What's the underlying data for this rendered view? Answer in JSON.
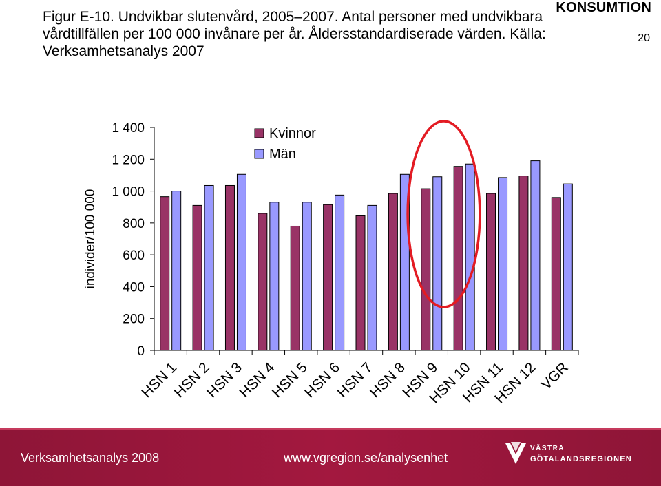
{
  "header": {
    "section_label": "KONSUMTION",
    "page_number": "20",
    "caption": "Figur E-10. Undvikbar slutenvård, 2005–2007. Antal personer med undvikbara vårdtillfällen per 100 000 invånare per år. Åldersstandardiserade värden. Källa: Verksamhetsanalys 2007"
  },
  "chart_data": {
    "type": "bar",
    "title": "",
    "xlabel": "",
    "ylabel": "individer/100 000",
    "ylim": [
      0,
      1400
    ],
    "yticks": [
      0,
      200,
      400,
      600,
      800,
      1000,
      1200,
      1400
    ],
    "ytick_labels": [
      "0",
      "200",
      "400",
      "600",
      "800",
      "1 000",
      "1 200",
      "1 400"
    ],
    "categories": [
      "HSN 1",
      "HSN 2",
      "HSN 3",
      "HSN 4",
      "HSN 5",
      "HSN 6",
      "HSN 7",
      "HSN 8",
      "HSN 9",
      "HSN 10",
      "HSN 11",
      "HSN 12",
      "VGR"
    ],
    "series": [
      {
        "name": "Kvinnor",
        "color": "#993366",
        "values": [
          965,
          910,
          1035,
          860,
          780,
          915,
          845,
          985,
          1015,
          1155,
          985,
          1095,
          960
        ]
      },
      {
        "name": "Män",
        "color": "#9999ff",
        "values": [
          1000,
          1035,
          1105,
          930,
          930,
          975,
          910,
          1105,
          1090,
          1170,
          1085,
          1190,
          1045
        ]
      }
    ],
    "legend_position": "top-center",
    "grid": false,
    "highlight": {
      "shape": "ellipse",
      "color": "#e31b23",
      "categories": [
        "HSN 9",
        "HSN 10"
      ]
    }
  },
  "footer": {
    "left_text": "Verksamhetsanalys 2008",
    "center_text": "www.vgregion.se/analysenhet",
    "logo_line1": "VÄSTRA",
    "logo_line2": "GÖTALANDSREGIONEN"
  }
}
